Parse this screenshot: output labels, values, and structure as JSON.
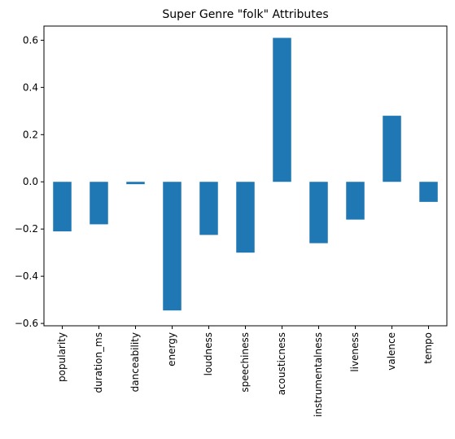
{
  "chart_data": {
    "type": "bar",
    "title": "Super Genre \"folk\" Attributes",
    "xlabel": "",
    "ylabel": "",
    "categories": [
      "popularity",
      "duration_ms",
      "danceability",
      "energy",
      "loudness",
      "speechiness",
      "acousticness",
      "instrumentalness",
      "liveness",
      "valence",
      "tempo"
    ],
    "values": [
      -0.21,
      -0.18,
      -0.01,
      -0.545,
      -0.225,
      -0.3,
      0.61,
      -0.26,
      -0.16,
      0.28,
      -0.085
    ],
    "ylim": [
      -0.61,
      0.66
    ],
    "yticks": [
      -0.6,
      -0.4,
      -0.2,
      0.0,
      0.2,
      0.4,
      0.6
    ],
    "ytick_labels": [
      "−0.6",
      "−0.4",
      "−0.2",
      "0.0",
      "0.2",
      "0.4",
      "0.6"
    ],
    "grid": false,
    "legend": "none",
    "bar_color": "#1f77b4"
  }
}
